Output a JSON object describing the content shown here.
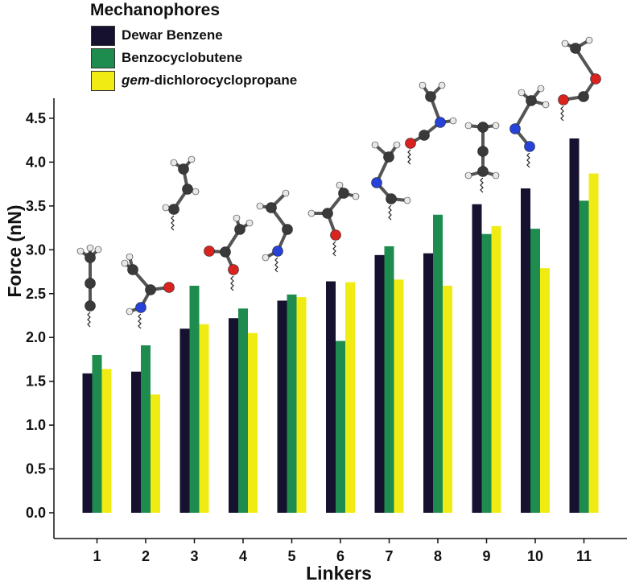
{
  "chart_data": {
    "type": "bar",
    "xlabel": "Linkers",
    "ylabel": "Force (nN)",
    "ylim": [
      0,
      4.75
    ],
    "yticks": [
      "0.0",
      "0.5",
      "1.0",
      "1.5",
      "2.0",
      "2.5",
      "3.0",
      "3.5",
      "4.0",
      "4.5"
    ],
    "categories": [
      "1",
      "2",
      "3",
      "4",
      "5",
      "6",
      "7",
      "8",
      "9",
      "10",
      "11"
    ],
    "legend_title": "Mechanophores",
    "legend_position": "top-left",
    "grid": false,
    "series": [
      {
        "name": "Dewar Benzene",
        "color": "#15112f",
        "values": [
          1.59,
          1.61,
          2.1,
          2.22,
          2.42,
          2.64,
          2.94,
          2.96,
          3.52,
          3.7,
          4.27
        ]
      },
      {
        "name": "Benzocyclobutene",
        "color": "#1e8c4e",
        "values": [
          1.8,
          1.91,
          2.59,
          2.33,
          2.49,
          1.96,
          3.04,
          3.4,
          3.18,
          3.24,
          3.56
        ]
      },
      {
        "name": "gem-dichlorocyclopropane",
        "name_italic_part": "gem",
        "name_rest": "-dichlorocyclopropane",
        "color": "#f0ec13",
        "values": [
          1.64,
          1.35,
          2.15,
          2.05,
          2.46,
          2.63,
          2.66,
          2.59,
          3.27,
          2.79,
          3.87
        ]
      }
    ]
  },
  "molecule_icons": [
    "alkyne-linker",
    "amide-nh-linker",
    "alkene-linker",
    "ester-linker",
    "amine-linker",
    "ketone-linker",
    "amine-ethyl-linker",
    "amide-linker",
    "alkane-linker",
    "azo-linker",
    "ester-o-linker"
  ]
}
